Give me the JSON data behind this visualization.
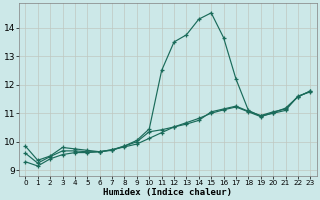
{
  "xlabel": "Humidex (Indice chaleur)",
  "bg_color": "#cce8e8",
  "grid_color": "#b8c8c8",
  "line_color": "#1a6b5a",
  "xlim": [
    -0.5,
    23.5
  ],
  "ylim": [
    8.8,
    14.85
  ],
  "xticks": [
    0,
    1,
    2,
    3,
    4,
    5,
    6,
    7,
    8,
    9,
    10,
    11,
    12,
    13,
    14,
    15,
    16,
    17,
    18,
    19,
    20,
    21,
    22,
    23
  ],
  "yticks": [
    9,
    10,
    11,
    12,
    13,
    14
  ],
  "series1_x": [
    0,
    1,
    2,
    3,
    4,
    5,
    6,
    7,
    8,
    9,
    10,
    11,
    12,
    13,
    14,
    15,
    16,
    17,
    18,
    19,
    20,
    21,
    22,
    23
  ],
  "series1_y": [
    9.85,
    9.35,
    9.5,
    9.8,
    9.75,
    9.7,
    9.65,
    9.7,
    9.85,
    10.05,
    10.45,
    12.5,
    13.5,
    13.75,
    14.3,
    14.52,
    13.65,
    12.2,
    11.1,
    10.9,
    11.0,
    11.1,
    11.6,
    11.75
  ],
  "series2_x": [
    0,
    1,
    2,
    3,
    4,
    5,
    6,
    7,
    8,
    9,
    10,
    11,
    12,
    13,
    14,
    15,
    16,
    17,
    18,
    19,
    20,
    21,
    22,
    23
  ],
  "series2_y": [
    9.3,
    9.15,
    9.4,
    9.55,
    9.62,
    9.62,
    9.65,
    9.72,
    9.82,
    9.92,
    10.12,
    10.32,
    10.52,
    10.67,
    10.82,
    11.0,
    11.12,
    11.22,
    11.05,
    10.88,
    11.02,
    11.18,
    11.58,
    11.78
  ],
  "series3_x": [
    0,
    1,
    2,
    3,
    4,
    5,
    6,
    7,
    8,
    9,
    10,
    11,
    12,
    13,
    14,
    15,
    16,
    17,
    18,
    19,
    20,
    21,
    22,
    23
  ],
  "series3_y": [
    9.6,
    9.25,
    9.48,
    9.68,
    9.68,
    9.65,
    9.65,
    9.72,
    9.85,
    10.0,
    10.35,
    10.42,
    10.52,
    10.62,
    10.75,
    11.05,
    11.15,
    11.25,
    11.07,
    10.92,
    11.05,
    11.15,
    11.58,
    11.78
  ]
}
